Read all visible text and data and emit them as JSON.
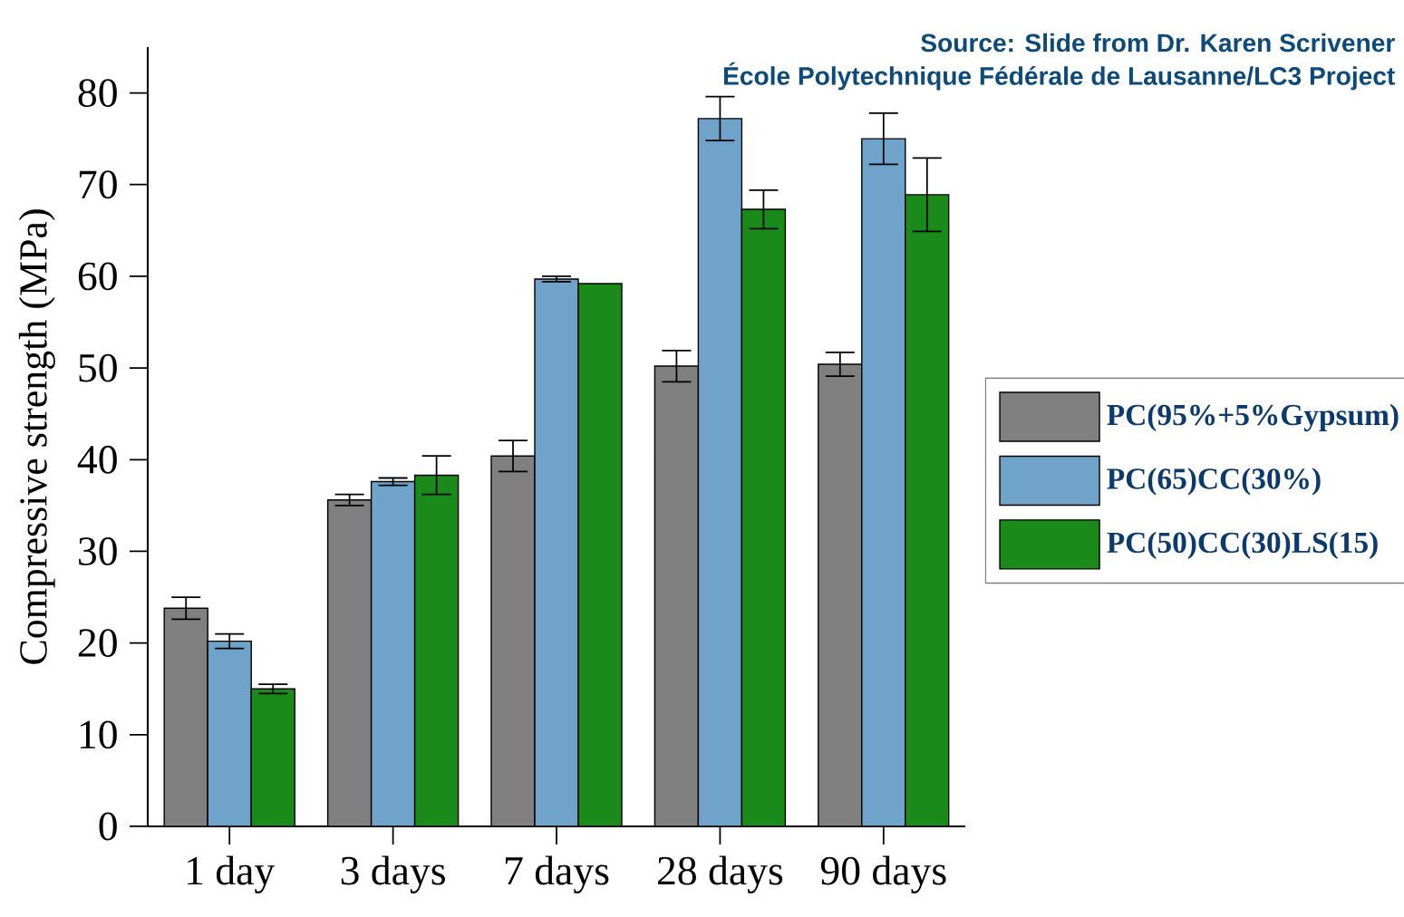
{
  "chart_data": {
    "type": "bar",
    "ylabel": "Compressive strength (MPa)",
    "categories": [
      "1 day",
      "3 days",
      "7 days",
      "28 days",
      "90 days"
    ],
    "series": [
      {
        "name": "PC(95%+5%Gypsum)",
        "color": "#808080",
        "values": [
          23.8,
          35.6,
          40.4,
          50.2,
          50.4
        ],
        "errors": [
          1.2,
          0.6,
          1.7,
          1.7,
          1.3
        ]
      },
      {
        "name": "PC(65)CC(30%)",
        "color": "#6fa3c9",
        "values": [
          20.2,
          37.6,
          59.7,
          77.2,
          75.0
        ],
        "errors": [
          0.8,
          0.4,
          0.3,
          2.4,
          2.8
        ]
      },
      {
        "name": "PC(50)CC(30)LS(15)",
        "color": "#1a8a1a",
        "values": [
          15.0,
          38.3,
          59.2,
          67.3,
          68.9
        ],
        "errors": [
          0.5,
          2.1,
          null,
          2.1,
          4.0
        ]
      }
    ],
    "ylim": [
      0,
      85
    ],
    "yticks": [
      0,
      10,
      20,
      30,
      40,
      50,
      60,
      70,
      80
    ],
    "legend": "right",
    "annotations": [
      "Source: Slide from Dr. Karen Scrivener",
      "École Polytechnique Fédérale de Lausanne/LC3 Project"
    ]
  }
}
